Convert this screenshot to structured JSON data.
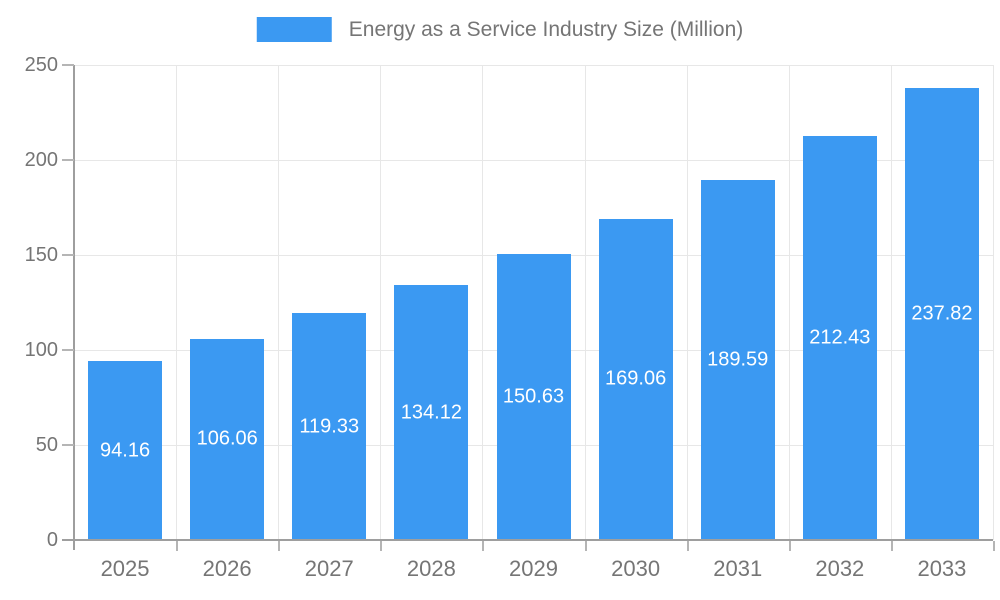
{
  "legend": {
    "label": "Energy as a Service Industry Size (Million)"
  },
  "chart_data": {
    "type": "bar",
    "title": "Energy as a Service Industry Size (Million)",
    "categories": [
      "2025",
      "2026",
      "2027",
      "2028",
      "2029",
      "2030",
      "2031",
      "2032",
      "2033"
    ],
    "values": [
      94.16,
      106.06,
      119.33,
      134.12,
      150.63,
      169.06,
      189.59,
      212.43,
      237.82
    ],
    "value_labels": [
      "94.16",
      "106.06",
      "119.33",
      "134.12",
      "150.63",
      "169.06",
      "189.59",
      "212.43",
      "237.82"
    ],
    "xlabel": "",
    "ylabel": "",
    "ylim": [
      0,
      250
    ],
    "yticks": [
      0,
      50,
      100,
      150,
      200,
      250
    ],
    "grid": true,
    "legend_position": "top-center",
    "colors": {
      "bar": "#3B99F2",
      "value_label": "#FFFFFF",
      "axis": "#9E9E9E",
      "grid": "#E7E7E7",
      "tick": "#B5B5B5",
      "text": "#757575"
    }
  }
}
